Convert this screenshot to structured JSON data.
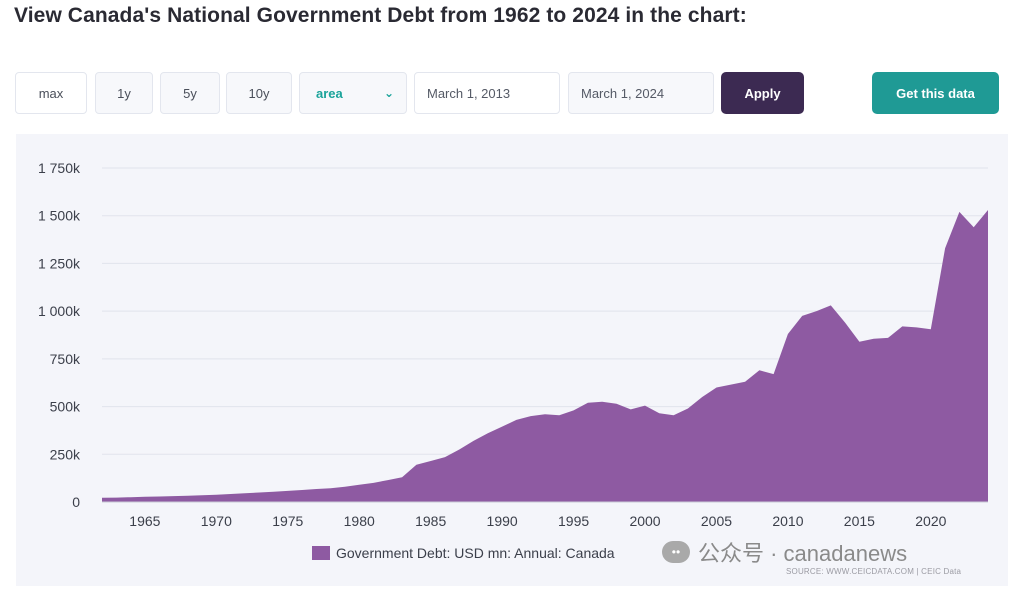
{
  "page": {
    "title": "View Canada's National Government Debt from 1962 to 2024 in the chart:"
  },
  "controls": {
    "range_buttons": [
      "max",
      "1y",
      "5y",
      "10y"
    ],
    "chart_type_value": "area",
    "start_date": "March 1, 2013",
    "end_date": "March 1, 2024",
    "apply_label": "Apply",
    "get_data_label": "Get this data"
  },
  "icons": {
    "select_chevron": "chevron-down-icon",
    "watermark": "wechat-icon"
  },
  "colors": {
    "series": "#8e5aa2",
    "apply": "#3c2a52",
    "get_data": "#1f9a95",
    "panel": "#f4f5fa"
  },
  "chart_data": {
    "type": "area",
    "title": "",
    "xlabel": "",
    "ylabel": "",
    "xlim": [
      1962,
      2024
    ],
    "ylim": [
      0,
      1750000
    ],
    "y_ticks": [
      0,
      250000,
      500000,
      750000,
      1000000,
      1250000,
      1500000,
      1750000
    ],
    "y_tick_labels": [
      "0",
      "250k",
      "500k",
      "750k",
      "1 000k",
      "1 250k",
      "1 500k",
      "1 750k"
    ],
    "x_ticks": [
      1965,
      1970,
      1975,
      1980,
      1985,
      1990,
      1995,
      2000,
      2005,
      2010,
      2015,
      2020
    ],
    "grid": true,
    "legend": "bottom",
    "series": [
      {
        "name": "Government Debt: USD mn: Annual: Canada",
        "x": [
          1962,
          1963,
          1964,
          1965,
          1966,
          1967,
          1968,
          1969,
          1970,
          1971,
          1972,
          1973,
          1974,
          1975,
          1976,
          1977,
          1978,
          1979,
          1980,
          1981,
          1982,
          1983,
          1984,
          1985,
          1986,
          1987,
          1988,
          1989,
          1990,
          1991,
          1992,
          1993,
          1994,
          1995,
          1996,
          1997,
          1998,
          1999,
          2000,
          2001,
          2002,
          2003,
          2004,
          2005,
          2006,
          2007,
          2008,
          2009,
          2010,
          2011,
          2012,
          2013,
          2014,
          2015,
          2016,
          2017,
          2018,
          2019,
          2020,
          2021,
          2022,
          2023,
          2024
        ],
        "values": [
          22000,
          23000,
          25000,
          27000,
          29000,
          31000,
          33000,
          35000,
          38000,
          42000,
          46000,
          50000,
          54000,
          58000,
          63000,
          68000,
          72000,
          80000,
          90000,
          100000,
          115000,
          130000,
          195000,
          215000,
          235000,
          275000,
          320000,
          360000,
          395000,
          430000,
          450000,
          460000,
          455000,
          480000,
          520000,
          525000,
          515000,
          485000,
          505000,
          465000,
          455000,
          490000,
          550000,
          600000,
          615000,
          630000,
          690000,
          670000,
          880000,
          975000,
          1000000,
          1030000,
          940000,
          840000,
          855000,
          860000,
          920000,
          915000,
          905000,
          1330000,
          1520000,
          1440000,
          1530000
        ]
      }
    ]
  },
  "legend": {
    "label": "Government Debt: USD mn: Annual: Canada"
  },
  "watermark": {
    "text": "公众号 · canadanews"
  },
  "source": {
    "text": "SOURCE: WWW.CEICDATA.COM | CEIC Data"
  }
}
